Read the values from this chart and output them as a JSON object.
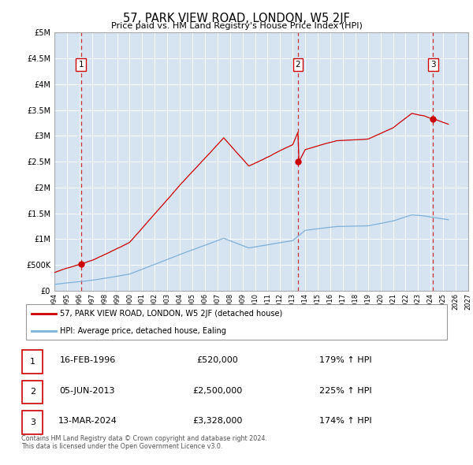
{
  "title": "57, PARK VIEW ROAD, LONDON, W5 2JF",
  "subtitle": "Price paid vs. HM Land Registry's House Price Index (HPI)",
  "xmin": 1994,
  "xmax": 2027,
  "ymin": 0,
  "ymax": 5000000,
  "yticks": [
    0,
    500000,
    1000000,
    1500000,
    2000000,
    2500000,
    3000000,
    3500000,
    4000000,
    4500000,
    5000000
  ],
  "ytick_labels": [
    "£0",
    "£500K",
    "£1M",
    "£1.5M",
    "£2M",
    "£2.5M",
    "£3M",
    "£3.5M",
    "£4M",
    "£4.5M",
    "£5M"
  ],
  "xticks": [
    1994,
    1995,
    1996,
    1997,
    1998,
    1999,
    2000,
    2001,
    2002,
    2003,
    2004,
    2005,
    2006,
    2007,
    2008,
    2009,
    2010,
    2011,
    2012,
    2013,
    2014,
    2015,
    2016,
    2017,
    2018,
    2019,
    2020,
    2021,
    2022,
    2023,
    2024,
    2025,
    2026,
    2027
  ],
  "sales_line_color": "#cc0000",
  "hpi_line_color": "#7fb0d8",
  "plot_bg_color": "#dce9f5",
  "hatch_bg_color": "#cddcec",
  "sale_points": [
    {
      "year": 1996.12,
      "value": 520000,
      "label": "1"
    },
    {
      "year": 2013.42,
      "value": 2500000,
      "label": "2"
    },
    {
      "year": 2024.19,
      "value": 3328000,
      "label": "3"
    }
  ],
  "vline_years": [
    1996.12,
    2013.42,
    2024.19
  ],
  "legend_entries": [
    "57, PARK VIEW ROAD, LONDON, W5 2JF (detached house)",
    "HPI: Average price, detached house, Ealing"
  ],
  "table_rows": [
    {
      "num": "1",
      "date": "16-FEB-1996",
      "price": "£520,000",
      "hpi": "179% ↑ HPI"
    },
    {
      "num": "2",
      "date": "05-JUN-2013",
      "price": "£2,500,000",
      "hpi": "225% ↑ HPI"
    },
    {
      "num": "3",
      "date": "13-MAR-2024",
      "price": "£3,328,000",
      "hpi": "174% ↑ HPI"
    }
  ],
  "footer": "Contains HM Land Registry data © Crown copyright and database right 2024.\nThis data is licensed under the Open Government Licence v3.0."
}
